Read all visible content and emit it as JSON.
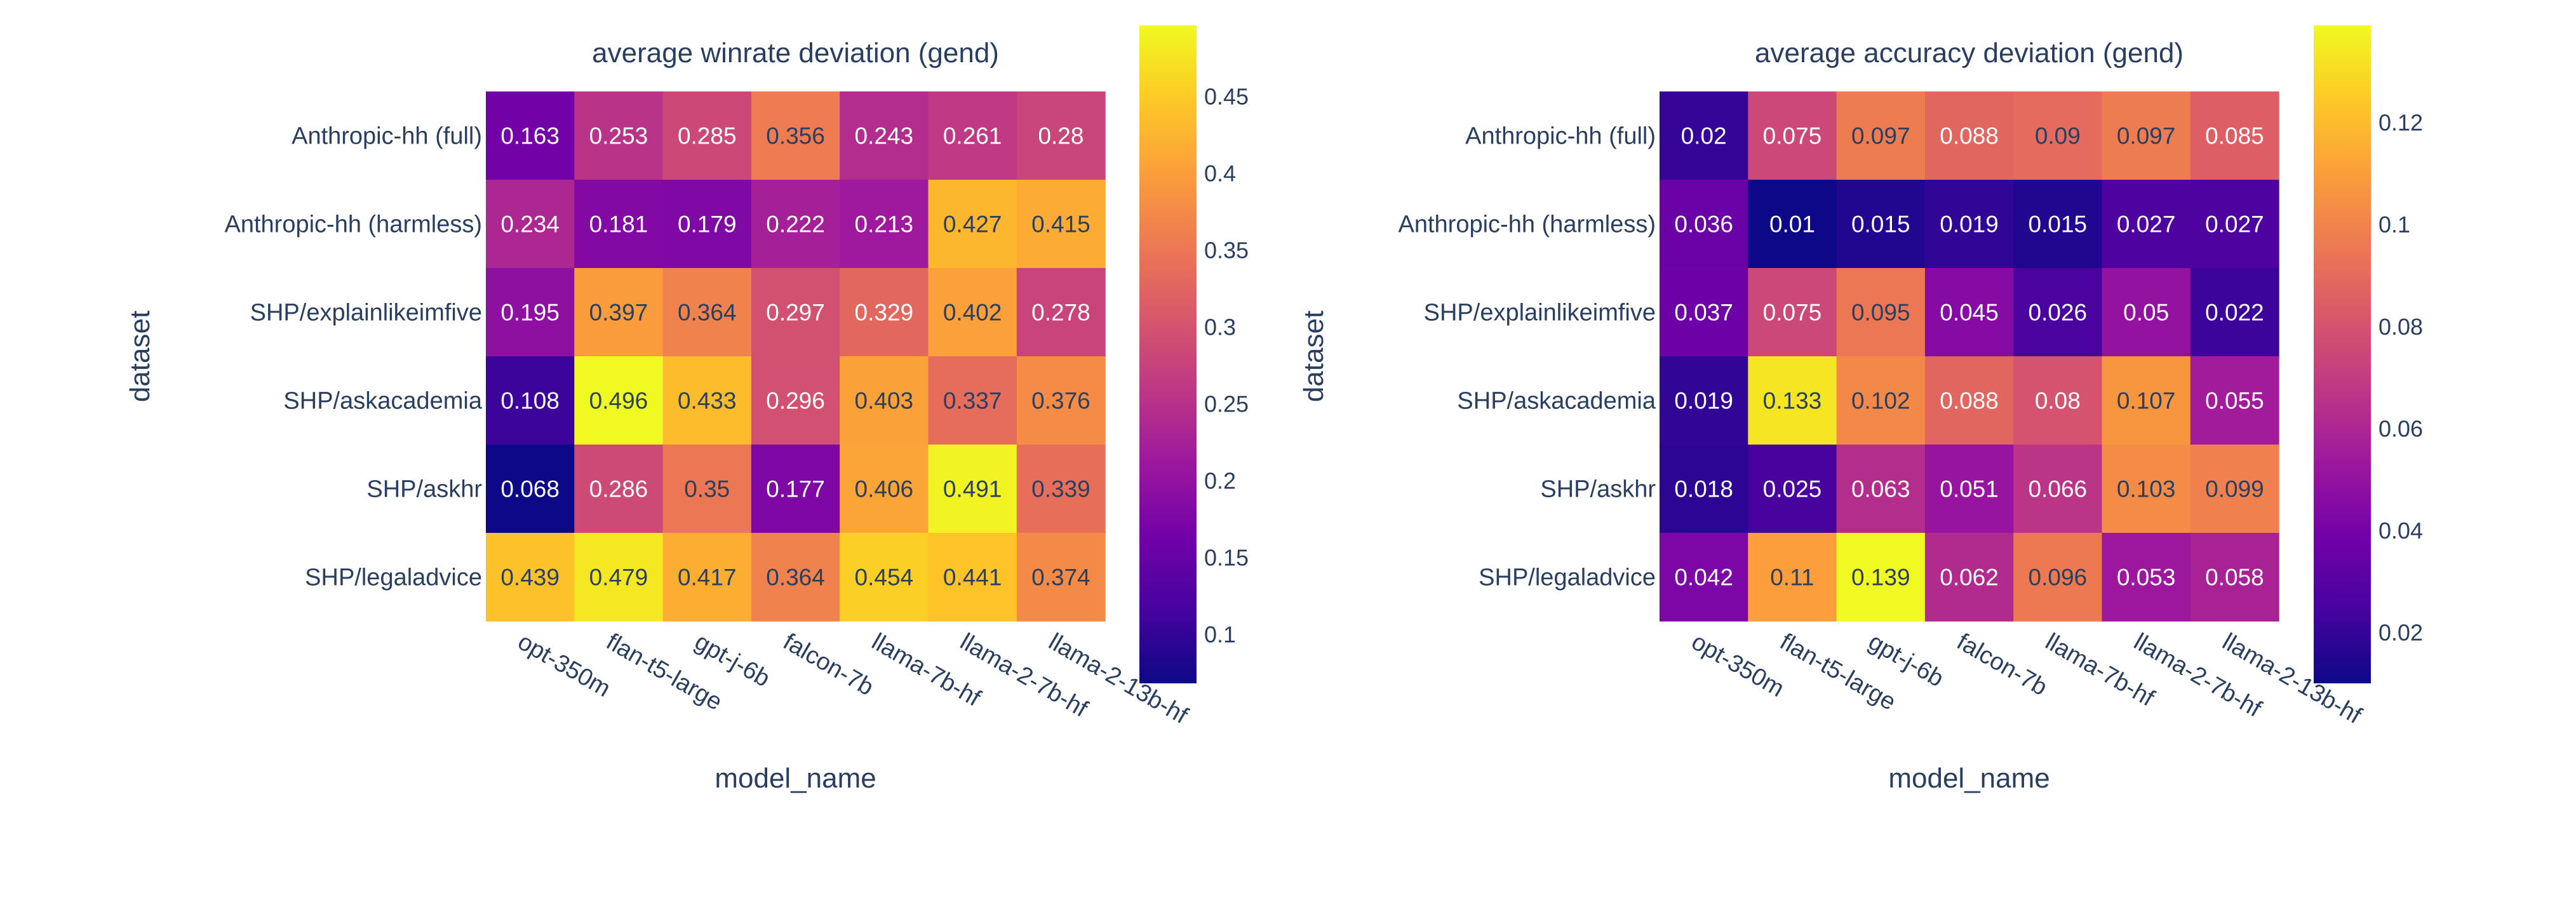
{
  "chart_data": [
    {
      "type": "heatmap",
      "title": "average winrate deviation (gend)",
      "xlabel": "model_name",
      "ylabel": "dataset",
      "x": [
        "opt-350m",
        "flan-t5-large",
        "gpt-j-6b",
        "falcon-7b",
        "llama-7b-hf",
        "llama-2-7b-hf",
        "llama-2-13b-hf"
      ],
      "y": [
        "Anthropic-hh (full)",
        "Anthropic-hh (harmless)",
        "SHP/explainlikeimfive",
        "SHP/askacademia",
        "SHP/askhr",
        "SHP/legaladvice"
      ],
      "z": [
        [
          0.163,
          0.253,
          0.285,
          0.356,
          0.243,
          0.261,
          0.28
        ],
        [
          0.234,
          0.181,
          0.179,
          0.222,
          0.213,
          0.427,
          0.415
        ],
        [
          0.195,
          0.397,
          0.364,
          0.297,
          0.329,
          0.402,
          0.278
        ],
        [
          0.108,
          0.496,
          0.433,
          0.296,
          0.403,
          0.337,
          0.376
        ],
        [
          0.068,
          0.286,
          0.35,
          0.177,
          0.406,
          0.491,
          0.339
        ],
        [
          0.439,
          0.479,
          0.417,
          0.364,
          0.454,
          0.441,
          0.374
        ]
      ],
      "labels": [
        [
          "0.163",
          "0.253",
          "0.285",
          "0.356",
          "0.243",
          "0.261",
          "0.28"
        ],
        [
          "0.234",
          "0.181",
          "0.179",
          "0.222",
          "0.213",
          "0.427",
          "0.415"
        ],
        [
          "0.195",
          "0.397",
          "0.364",
          "0.297",
          "0.329",
          "0.402",
          "0.278"
        ],
        [
          "0.108",
          "0.496",
          "0.433",
          "0.296",
          "0.403",
          "0.337",
          "0.376"
        ],
        [
          "0.068",
          "0.286",
          "0.35",
          "0.177",
          "0.406",
          "0.491",
          "0.339"
        ],
        [
          "0.439",
          "0.479",
          "0.417",
          "0.364",
          "0.454",
          "0.441",
          "0.374"
        ]
      ],
      "zmin": 0.068,
      "zmax": 0.496,
      "colorbar_ticks": [
        0.1,
        0.15,
        0.2,
        0.25,
        0.3,
        0.35,
        0.4,
        0.45
      ],
      "colorbar_tick_labels": [
        "0.1",
        "0.15",
        "0.2",
        "0.25",
        "0.3",
        "0.35",
        "0.4",
        "0.45"
      ],
      "colorscale": "plasma"
    },
    {
      "type": "heatmap",
      "title": "average accuracy deviation (gend)",
      "xlabel": "model_name",
      "ylabel": "dataset",
      "x": [
        "opt-350m",
        "flan-t5-large",
        "gpt-j-6b",
        "falcon-7b",
        "llama-7b-hf",
        "llama-2-7b-hf",
        "llama-2-13b-hf"
      ],
      "y": [
        "Anthropic-hh (full)",
        "Anthropic-hh (harmless)",
        "SHP/explainlikeimfive",
        "SHP/askacademia",
        "SHP/askhr",
        "SHP/legaladvice"
      ],
      "z": [
        [
          0.02,
          0.075,
          0.097,
          0.088,
          0.09,
          0.097,
          0.085
        ],
        [
          0.036,
          0.01,
          0.015,
          0.019,
          0.015,
          0.027,
          0.027
        ],
        [
          0.037,
          0.075,
          0.095,
          0.045,
          0.026,
          0.05,
          0.022
        ],
        [
          0.019,
          0.133,
          0.102,
          0.088,
          0.08,
          0.107,
          0.055
        ],
        [
          0.018,
          0.025,
          0.063,
          0.051,
          0.066,
          0.103,
          0.099
        ],
        [
          0.042,
          0.11,
          0.139,
          0.062,
          0.096,
          0.053,
          0.058
        ]
      ],
      "labels": [
        [
          "0.02",
          "0.075",
          "0.097",
          "0.088",
          "0.09",
          "0.097",
          "0.085"
        ],
        [
          "0.036",
          "0.01",
          "0.015",
          "0.019",
          "0.015",
          "0.027",
          "0.027"
        ],
        [
          "0.037",
          "0.075",
          "0.095",
          "0.045",
          "0.026",
          "0.05",
          "0.022"
        ],
        [
          "0.019",
          "0.133",
          "0.102",
          "0.088",
          "0.08",
          "0.107",
          "0.055"
        ],
        [
          "0.018",
          "0.025",
          "0.063",
          "0.051",
          "0.066",
          "0.103",
          "0.099"
        ],
        [
          "0.042",
          "0.11",
          "0.139",
          "0.062",
          "0.096",
          "0.053",
          "0.058"
        ]
      ],
      "zmin": 0.01,
      "zmax": 0.139,
      "colorbar_ticks": [
        0.02,
        0.04,
        0.06,
        0.08,
        0.1,
        0.12
      ],
      "colorbar_tick_labels": [
        "0.02",
        "0.04",
        "0.06",
        "0.08",
        "0.1",
        "0.12"
      ],
      "colorscale": "plasma"
    }
  ]
}
